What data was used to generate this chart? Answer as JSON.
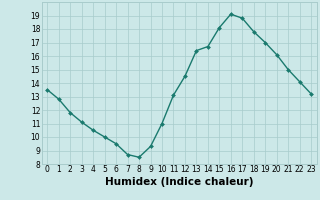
{
  "x": [
    0,
    1,
    2,
    3,
    4,
    5,
    6,
    7,
    8,
    9,
    10,
    11,
    12,
    13,
    14,
    15,
    16,
    17,
    18,
    19,
    20,
    21,
    22,
    23
  ],
  "y": [
    13.5,
    12.8,
    11.8,
    11.1,
    10.5,
    10.0,
    9.5,
    8.7,
    8.5,
    9.3,
    11.0,
    13.1,
    14.5,
    16.4,
    16.7,
    18.1,
    19.1,
    18.8,
    17.8,
    17.0,
    16.1,
    15.0,
    14.1,
    13.2
  ],
  "xlabel": "Humidex (Indice chaleur)",
  "ylim": [
    8,
    20
  ],
  "xlim_min": -0.5,
  "xlim_max": 23.5,
  "yticks": [
    8,
    9,
    10,
    11,
    12,
    13,
    14,
    15,
    16,
    17,
    18,
    19
  ],
  "xticks": [
    0,
    1,
    2,
    3,
    4,
    5,
    6,
    7,
    8,
    9,
    10,
    11,
    12,
    13,
    14,
    15,
    16,
    17,
    18,
    19,
    20,
    21,
    22,
    23
  ],
  "line_color": "#1a7a6e",
  "marker": "D",
  "marker_size": 2.0,
  "bg_color": "#cce8e8",
  "grid_color": "#a8cccc",
  "tick_fontsize": 5.5,
  "xlabel_fontsize": 7.5,
  "linewidth": 1.0
}
